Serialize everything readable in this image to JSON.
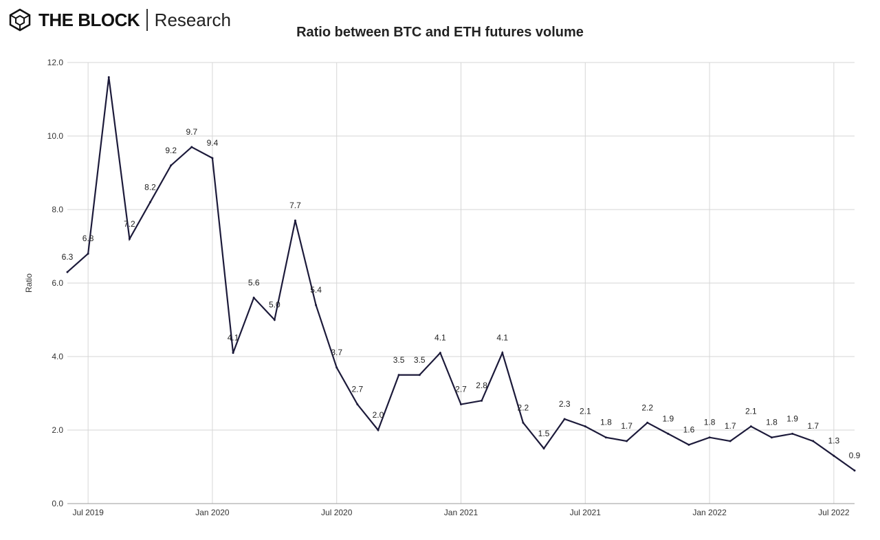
{
  "brand": {
    "name": "THE BLOCK",
    "sub": "Research"
  },
  "chart_data": {
    "type": "line",
    "title": "Ratio between BTC and ETH futures volume",
    "xlabel": "",
    "ylabel": "Ratio",
    "ylim": [
      0,
      12
    ],
    "yticks": [
      "0.0",
      "2.0",
      "4.0",
      "6.0",
      "8.0",
      "10.0",
      "12.0"
    ],
    "xticks": [
      "Jul 2019",
      "Jan 2020",
      "Jul 2020",
      "Jan 2021",
      "Jul 2021",
      "Jan 2022",
      "Jul 2022"
    ],
    "grid": true,
    "x": [
      "2019-06",
      "2019-07",
      "2019-08",
      "2019-09",
      "2019-10",
      "2019-11",
      "2019-12",
      "2020-01",
      "2020-02",
      "2020-03",
      "2020-04",
      "2020-05",
      "2020-06",
      "2020-07",
      "2020-08",
      "2020-09",
      "2020-10",
      "2020-11",
      "2020-12",
      "2021-01",
      "2021-02",
      "2021-03",
      "2021-04",
      "2021-05",
      "2021-06",
      "2021-07",
      "2021-08",
      "2021-09",
      "2021-10",
      "2021-11",
      "2021-12",
      "2022-01",
      "2022-02",
      "2022-03",
      "2022-04",
      "2022-05",
      "2022-06",
      "2022-07",
      "2022-08"
    ],
    "series": [
      {
        "name": "Ratio",
        "color": "#1c1a3a",
        "values": [
          6.3,
          6.8,
          11.6,
          7.2,
          8.2,
          9.2,
          9.7,
          9.4,
          4.1,
          5.6,
          5.0,
          7.7,
          5.4,
          3.7,
          2.7,
          2.0,
          3.5,
          3.5,
          4.1,
          2.7,
          2.8,
          4.1,
          2.2,
          1.5,
          2.3,
          2.1,
          1.8,
          1.7,
          2.2,
          1.9,
          1.6,
          1.8,
          1.7,
          2.1,
          1.8,
          1.9,
          1.7,
          1.3,
          0.9
        ]
      }
    ],
    "data_labels": [
      "6.3",
      "6.8",
      null,
      "7.2",
      "8.2",
      "9.2",
      "9.7",
      "9.4",
      "4.1",
      "5.6",
      "5.0",
      "7.7",
      "5.4",
      "3.7",
      "2.7",
      "2.0",
      "3.5",
      "3.5",
      "4.1",
      "2.7",
      "2.8",
      "4.1",
      "2.2",
      "1.5",
      "2.3",
      "2.1",
      "1.8",
      "1.7",
      "2.2",
      "1.9",
      "1.6",
      "1.8",
      "1.7",
      "2.1",
      "1.8",
      "1.9",
      "1.7",
      "1.3",
      "0.9"
    ]
  }
}
